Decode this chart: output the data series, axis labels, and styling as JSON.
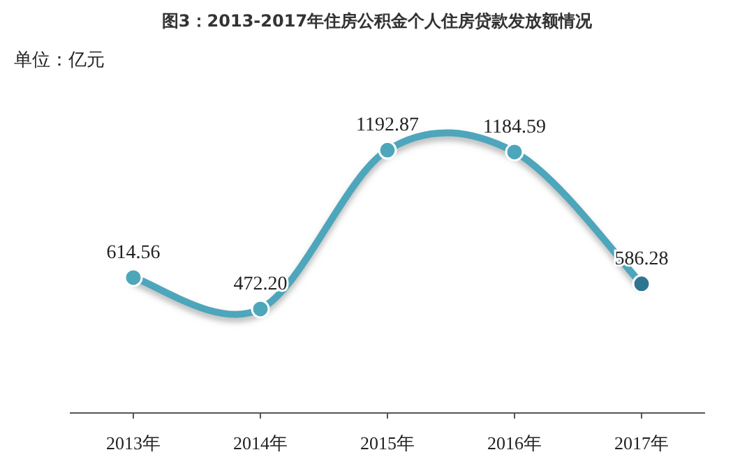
{
  "chart_data": {
    "type": "line",
    "title": "图3：2013-2017年住房公积金个人住房贷款发放额情况",
    "ylabel": "单位：亿元",
    "categories": [
      "2013年",
      "2014年",
      "2015年",
      "2016年",
      "2017年"
    ],
    "series": [
      {
        "color": "#4ea6bb",
        "colors": [
          "#4ea6bb",
          "#4ea6bb",
          "#4ea6bb",
          "#4ea6bb",
          "#2f7590"
        ],
        "values": [
          614.56,
          472.2,
          1192.87,
          1184.59,
          586.28
        ],
        "value_labels": [
          "614.56",
          "472.20",
          "1192.87",
          "1184.59",
          "586.28"
        ]
      }
    ],
    "marker": "circle",
    "line_style": "solid"
  }
}
